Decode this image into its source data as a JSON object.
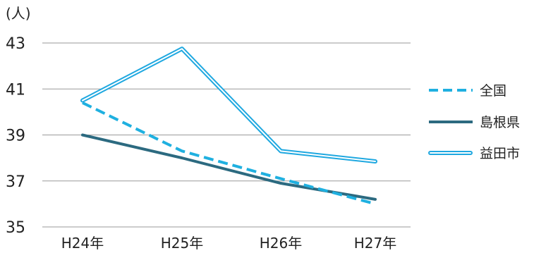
{
  "chart_data": {
    "type": "line",
    "unit_label": "(人)",
    "categories": [
      "H24年",
      "H25年",
      "H26年",
      "H27年"
    ],
    "ylim": [
      35,
      43
    ],
    "yticks": [
      35,
      37,
      39,
      41,
      43
    ],
    "grid": true,
    "legend_position": "right",
    "series": [
      {
        "name": "全国",
        "values": [
          40.4,
          38.3,
          37.1,
          36.0
        ],
        "style": "dashed",
        "color": "#1fb0e0"
      },
      {
        "name": "島根県",
        "values": [
          39.0,
          38.0,
          36.9,
          36.2
        ],
        "style": "solid",
        "color": "#2c6a80"
      },
      {
        "name": "益田市",
        "values": [
          40.5,
          42.75,
          38.3,
          37.85
        ],
        "style": "double",
        "color": "#1fa8e0"
      }
    ]
  }
}
